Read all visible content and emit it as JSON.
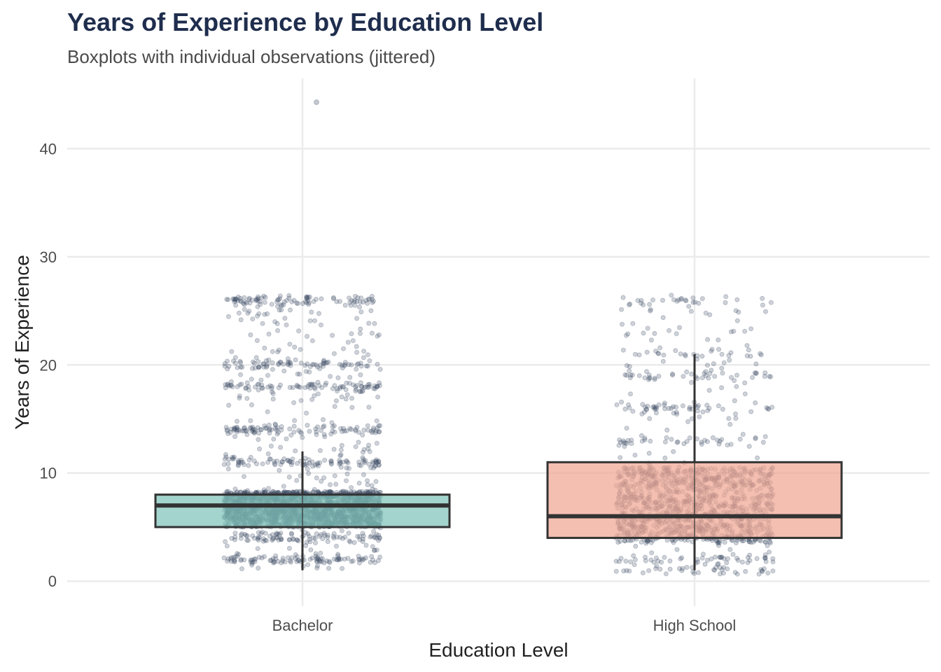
{
  "colors": {
    "title": "#1f2d4d",
    "subtitle": "#4a4a4a",
    "tick": "#4d4d4d",
    "axis_title": "#222222",
    "grid": "#ebebeb",
    "box_outline": "#333333",
    "points": "#3d4a63",
    "bachelor_fill": "#7fc4ba",
    "high_school_fill": "#f0a693"
  },
  "chart_data": {
    "type": "boxplot-jitter",
    "title": "Years of Experience by Education Level",
    "subtitle": "Boxplots with individual observations (jittered)",
    "xlabel": "Education Level",
    "ylabel": "Years of Experience",
    "categories": [
      "Bachelor",
      "High School"
    ],
    "ylim": [
      -1.8,
      46.5
    ],
    "yticks": [
      0,
      10,
      20,
      30,
      40
    ],
    "ytick_labels": [
      "0",
      "10",
      "20",
      "30",
      "40"
    ],
    "grid": true,
    "legend": "none",
    "boxes": [
      {
        "category": "Bachelor",
        "whisker_low": 1,
        "q1": 5,
        "median": 7,
        "q3": 8,
        "whisker_high": 12,
        "fill": "#7fc4ba",
        "outliers": [
          44.3
        ]
      },
      {
        "category": "High School",
        "whisker_low": 1,
        "q1": 4,
        "median": 6,
        "q3": 11,
        "whisker_high": 21,
        "fill": "#f0a693",
        "outliers": []
      }
    ],
    "observations": {
      "jittered": true,
      "point_opacity": 0.25,
      "Bachelor": {
        "approx_count": 2600,
        "dense_range": [
          5,
          8.3
        ],
        "value_clusters": [
          2,
          4,
          6,
          7,
          8,
          11,
          14,
          18,
          20,
          26
        ]
      },
      "High School": {
        "approx_count": 1400,
        "dense_range": [
          3.5,
          10.5
        ],
        "value_clusters": [
          1,
          2,
          4,
          5,
          6,
          7,
          9,
          10,
          13,
          16,
          19,
          21,
          26
        ]
      }
    }
  }
}
